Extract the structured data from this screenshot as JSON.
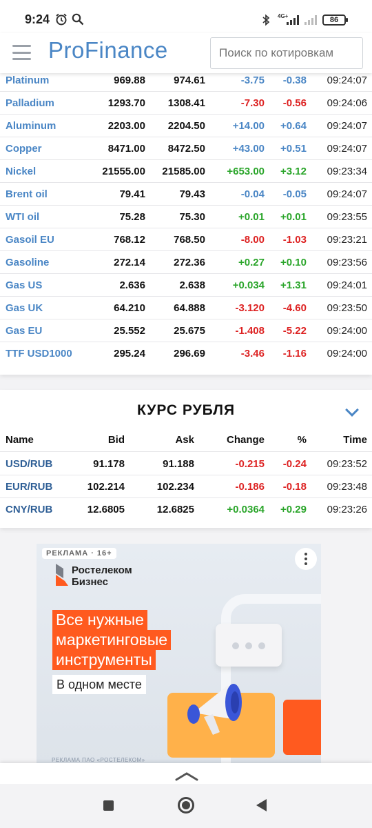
{
  "status_bar": {
    "time": "9:24",
    "network": "4G+",
    "battery": "86",
    "icons": [
      "alarm-icon",
      "search-icon",
      "bluetooth-icon",
      "signal-icon",
      "battery-icon"
    ]
  },
  "header": {
    "logo_pro": "Pro",
    "logo_finance": "Finance",
    "search_placeholder": "Поиск по котировкам",
    "colors": {
      "logo": "#4a86c5"
    }
  },
  "commodities": {
    "rows": [
      {
        "name": "Platinum",
        "bid": "969.88",
        "ask": "974.61",
        "change": "-3.75",
        "pct": "-0.38",
        "time": "09:24:07",
        "dir": "neu"
      },
      {
        "name": "Palladium",
        "bid": "1293.70",
        "ask": "1308.41",
        "change": "-7.30",
        "pct": "-0.56",
        "time": "09:24:06",
        "dir": "neg"
      },
      {
        "name": "Aluminum",
        "bid": "2203.00",
        "ask": "2204.50",
        "change": "+14.00",
        "pct": "+0.64",
        "time": "09:24:07",
        "dir": "neu"
      },
      {
        "name": "Copper",
        "bid": "8471.00",
        "ask": "8472.50",
        "change": "+43.00",
        "pct": "+0.51",
        "time": "09:24:07",
        "dir": "neu"
      },
      {
        "name": "Nickel",
        "bid": "21555.00",
        "ask": "21585.00",
        "change": "+653.00",
        "pct": "+3.12",
        "time": "09:23:34",
        "dir": "pos"
      },
      {
        "name": "Brent oil",
        "bid": "79.41",
        "ask": "79.43",
        "change": "-0.04",
        "pct": "-0.05",
        "time": "09:24:07",
        "dir": "neu"
      },
      {
        "name": "WTI oil",
        "bid": "75.28",
        "ask": "75.30",
        "change": "+0.01",
        "pct": "+0.01",
        "time": "09:23:55",
        "dir": "pos"
      },
      {
        "name": "Gasoil EU",
        "bid": "768.12",
        "ask": "768.50",
        "change": "-8.00",
        "pct": "-1.03",
        "time": "09:23:21",
        "dir": "neg"
      },
      {
        "name": "Gasoline",
        "bid": "272.14",
        "ask": "272.36",
        "change": "+0.27",
        "pct": "+0.10",
        "time": "09:23:56",
        "dir": "pos"
      },
      {
        "name": "Gas US",
        "bid": "2.636",
        "ask": "2.638",
        "change": "+0.034",
        "pct": "+1.31",
        "time": "09:24:01",
        "dir": "pos"
      },
      {
        "name": "Gas UK",
        "bid": "64.210",
        "ask": "64.888",
        "change": "-3.120",
        "pct": "-4.60",
        "time": "09:23:50",
        "dir": "neg"
      },
      {
        "name": "Gas EU",
        "bid": "25.552",
        "ask": "25.675",
        "change": "-1.408",
        "pct": "-5.22",
        "time": "09:24:00",
        "dir": "neg"
      },
      {
        "name": "TTF USD1000",
        "bid": "295.24",
        "ask": "296.69",
        "change": "-3.46",
        "pct": "-1.16",
        "time": "09:24:00",
        "dir": "neg"
      }
    ]
  },
  "ruble": {
    "title": "КУРС РУБЛЯ",
    "columns": {
      "name": "Name",
      "bid": "Bid",
      "ask": "Ask",
      "change": "Change",
      "pct": "%",
      "time": "Time"
    },
    "rows": [
      {
        "name": "USD/RUB",
        "bid": "91.178",
        "ask": "91.188",
        "change": "-0.215",
        "pct": "-0.24",
        "time": "09:23:52",
        "dir": "neg"
      },
      {
        "name": "EUR/RUB",
        "bid": "102.214",
        "ask": "102.234",
        "change": "-0.186",
        "pct": "-0.18",
        "time": "09:23:48",
        "dir": "neg"
      },
      {
        "name": "CNY/RUB",
        "bid": "12.6805",
        "ask": "12.6825",
        "change": "+0.0364",
        "pct": "+0.29",
        "time": "09:23:26",
        "dir": "pos"
      }
    ]
  },
  "ad": {
    "badge": "РЕКЛАМА · 16+",
    "brand_line1": "Ростелеком",
    "brand_line2": "Бизнес",
    "headline": [
      "Все нужные",
      "маркетинговые",
      "инструменты"
    ],
    "subline": "В одном месте",
    "footer": "РЕКЛАМА ПАО «РОСТЕЛЕКОМ»",
    "colors": {
      "accent": "#ff5a1f"
    }
  }
}
